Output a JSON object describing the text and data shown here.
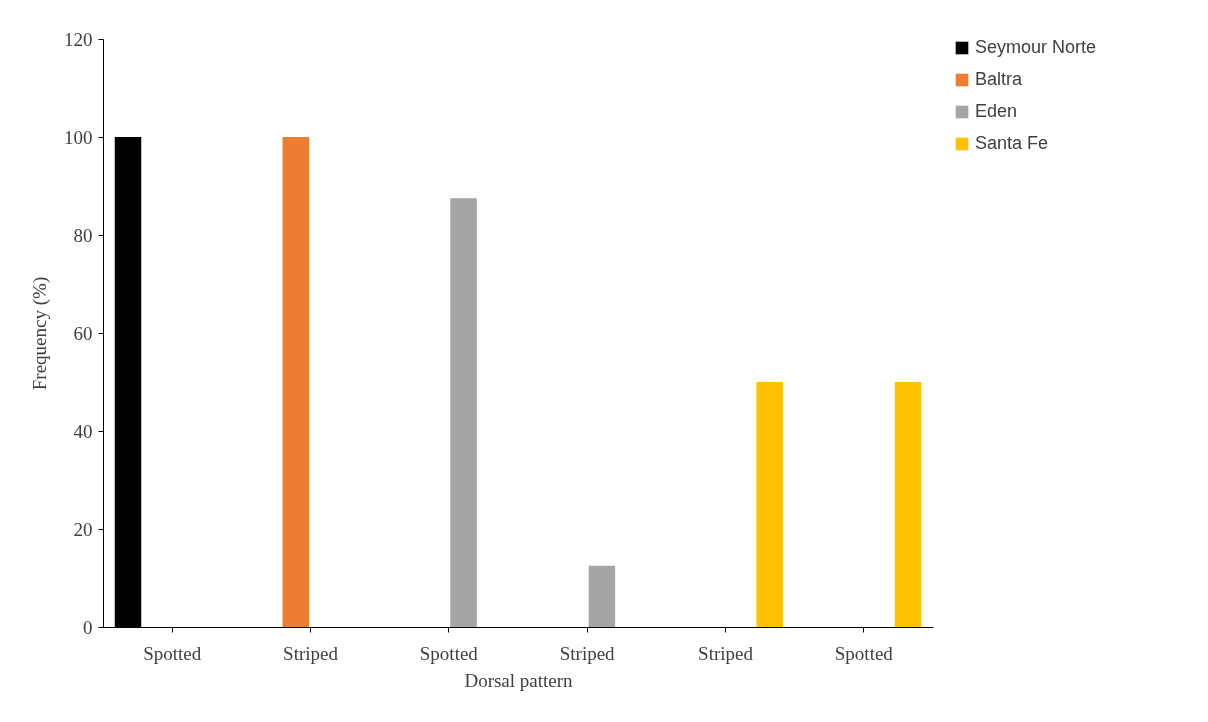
{
  "chart_data": {
    "type": "bar",
    "xlabel": "Dorsal pattern",
    "ylabel": "Frequency (%)",
    "categories": [
      "Spotted",
      "Striped",
      "Spotted",
      "Striped",
      "Striped",
      "Spotted"
    ],
    "series": [
      {
        "name": "Seymour Norte",
        "color": "#000000",
        "values": [
          100,
          null,
          null,
          null,
          null,
          null
        ]
      },
      {
        "name": "Baltra",
        "color": "#ed7d31",
        "values": [
          null,
          100,
          null,
          null,
          null,
          null
        ]
      },
      {
        "name": "Eden",
        "color": "#a5a5a5",
        "values": [
          null,
          null,
          87.5,
          12.5,
          null,
          null
        ]
      },
      {
        "name": "Santa Fe",
        "color": "#ffc000",
        "values": [
          null,
          null,
          null,
          null,
          50,
          50
        ]
      }
    ],
    "ylim": [
      0,
      120
    ],
    "yticks": [
      0,
      20,
      40,
      60,
      80,
      100,
      120
    ],
    "grid": false,
    "legend": "right"
  }
}
